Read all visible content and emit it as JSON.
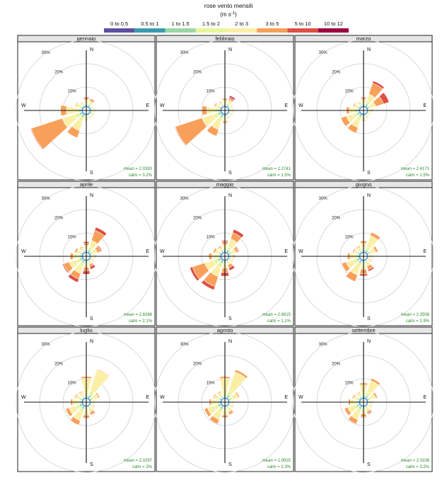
{
  "legend": {
    "title": "rose vento mensili",
    "unit_base": "(m s",
    "unit_exp": "-1",
    "unit_close": ")",
    "bins": [
      {
        "label": "0 to 0.5",
        "color": "#5E4FA2"
      },
      {
        "label": "0.5 to 1",
        "color": "#3A9BB0"
      },
      {
        "label": "1 to 1.5",
        "color": "#9CD6A4"
      },
      {
        "label": "1.5 to 2",
        "color": "#E8F59A"
      },
      {
        "label": "2 to 3",
        "color": "#FBEFA6"
      },
      {
        "label": "3 to 5",
        "color": "#F8A05A"
      },
      {
        "label": "5 to 10",
        "color": "#DE4F45"
      },
      {
        "label": "10 to 12",
        "color": "#9E0142"
      }
    ]
  },
  "axis_labels": {
    "north": "N",
    "south": "S",
    "east": "E",
    "west": "W"
  },
  "ring_labels": [
    "10%",
    "20%",
    "30%"
  ],
  "chart_data": {
    "type": "windrose",
    "directions_deg": [
      0,
      30,
      60,
      90,
      120,
      150,
      180,
      210,
      240,
      270,
      300,
      330
    ],
    "bins": [
      "0 to 0.5",
      "0.5 to 1",
      "1 to 1.5",
      "1.5 to 2",
      "2 to 3",
      "3 to 5",
      "5 to 10",
      "10 to 12"
    ],
    "rings_percent": [
      10,
      20,
      30
    ],
    "panels": [
      {
        "title": "gennaio",
        "mean": "mean = 2.0393",
        "calm": "calm = 3.2%",
        "freq": [
          [
            0.3,
            0.4,
            0.6,
            0.6,
            1.2,
            1.0,
            0.3,
            0
          ],
          [
            0.2,
            0.4,
            0.6,
            0.7,
            1.0,
            0.8,
            0.3,
            0
          ],
          [
            0.2,
            0.3,
            0.4,
            0.4,
            0.5,
            0.2,
            0,
            0
          ],
          [
            0.2,
            0.3,
            0.5,
            0.6,
            0.8,
            0.2,
            0,
            0
          ],
          [
            0.2,
            0.3,
            0.5,
            0.5,
            0.7,
            0.2,
            0,
            0
          ],
          [
            0.2,
            0.3,
            0.4,
            0.4,
            0.5,
            0.3,
            0.1,
            0
          ],
          [
            0.3,
            0.4,
            0.5,
            0.5,
            0.8,
            0.3,
            0.1,
            0
          ],
          [
            0.3,
            0.5,
            1.0,
            1.8,
            4.0,
            3.2,
            0,
            0
          ],
          [
            0.3,
            0.5,
            1.0,
            2.0,
            5.5,
            14.0,
            0.3,
            0
          ],
          [
            0.3,
            0.5,
            0.9,
            1.8,
            3.5,
            2.5,
            0,
            0
          ],
          [
            0.2,
            0.4,
            0.6,
            0.8,
            1.2,
            0.4,
            0,
            0
          ],
          [
            0.2,
            0.3,
            0.4,
            0.5,
            0.8,
            0.3,
            0,
            0
          ]
        ]
      },
      {
        "title": "febbraio",
        "mean": "mean = 2.2741",
        "calm": "calm = 1.5%",
        "freq": [
          [
            0.3,
            0.4,
            0.6,
            0.6,
            1.0,
            0.6,
            0.3,
            0
          ],
          [
            0.2,
            0.4,
            0.6,
            0.8,
            1.3,
            0.8,
            0.6,
            0.5
          ],
          [
            0.2,
            0.3,
            0.4,
            0.5,
            0.6,
            0.3,
            0.1,
            0
          ],
          [
            0.2,
            0.3,
            0.4,
            0.5,
            0.7,
            0.3,
            0,
            0
          ],
          [
            0.2,
            0.3,
            0.4,
            0.5,
            0.6,
            0.3,
            0.1,
            0
          ],
          [
            0.2,
            0.3,
            0.4,
            0.4,
            0.6,
            0.3,
            0.2,
            0
          ],
          [
            0.3,
            0.4,
            0.6,
            0.7,
            1.0,
            0.6,
            0.3,
            0
          ],
          [
            0.3,
            0.5,
            1.0,
            1.8,
            3.5,
            3.0,
            0.2,
            0
          ],
          [
            0.3,
            0.5,
            1.0,
            2.0,
            5.0,
            12.0,
            0.3,
            0
          ],
          [
            0.3,
            0.5,
            0.9,
            1.6,
            3.0,
            2.0,
            0,
            0
          ],
          [
            0.2,
            0.4,
            0.6,
            0.8,
            1.0,
            0.5,
            0,
            0
          ],
          [
            0.2,
            0.3,
            0.4,
            0.5,
            0.8,
            0.4,
            0,
            0
          ]
        ]
      },
      {
        "title": "marzo",
        "mean": "mean = 2.4171",
        "calm": "calm = 1.5%",
        "freq": [
          [
            0.3,
            0.4,
            0.6,
            0.7,
            1.2,
            0.8,
            0.3,
            0
          ],
          [
            0.3,
            0.5,
            0.8,
            1.2,
            3.0,
            5.0,
            1.0,
            0
          ],
          [
            0.2,
            0.4,
            0.6,
            0.8,
            2.0,
            3.5,
            2.5,
            0
          ],
          [
            0.2,
            0.3,
            0.4,
            0.5,
            0.8,
            0.3,
            0,
            0
          ],
          [
            0.2,
            0.3,
            0.4,
            0.5,
            0.6,
            0.2,
            0,
            0
          ],
          [
            0.2,
            0.3,
            0.4,
            0.4,
            0.6,
            0.3,
            0.1,
            0
          ],
          [
            0.3,
            0.4,
            0.5,
            0.6,
            0.8,
            0.4,
            0.1,
            0
          ],
          [
            0.3,
            0.5,
            0.9,
            1.5,
            3.0,
            2.5,
            0,
            0
          ],
          [
            0.3,
            0.5,
            0.9,
            1.5,
            3.0,
            2.5,
            0,
            0
          ],
          [
            0.3,
            0.4,
            0.8,
            1.2,
            2.0,
            1.2,
            0,
            0
          ],
          [
            0.2,
            0.4,
            0.6,
            0.7,
            1.0,
            0.5,
            0,
            0
          ],
          [
            0.2,
            0.3,
            0.4,
            0.5,
            0.8,
            0.3,
            0,
            0
          ]
        ]
      },
      {
        "title": "aprile",
        "mean": "mean = 2.8286",
        "calm": "calm = 2.1%",
        "freq": [
          [
            0.3,
            0.4,
            0.6,
            0.7,
            1.2,
            1.0,
            0.6,
            0
          ],
          [
            0.3,
            0.5,
            0.8,
            1.2,
            2.8,
            4.5,
            1.5,
            0
          ],
          [
            0.2,
            0.4,
            0.6,
            0.8,
            1.5,
            1.5,
            0.5,
            0
          ],
          [
            0.2,
            0.3,
            0.4,
            0.5,
            0.8,
            0.4,
            0,
            0
          ],
          [
            0.2,
            0.3,
            0.4,
            0.5,
            0.6,
            0.3,
            0,
            0
          ],
          [
            0.2,
            0.3,
            0.4,
            0.5,
            0.8,
            1.0,
            1.2,
            0
          ],
          [
            0.3,
            0.4,
            0.6,
            0.7,
            1.2,
            1.5,
            1.5,
            0
          ],
          [
            0.3,
            0.5,
            0.9,
            1.5,
            3.0,
            2.5,
            1.5,
            0
          ],
          [
            0.3,
            0.5,
            0.9,
            1.5,
            3.0,
            2.5,
            0.5,
            0
          ],
          [
            0.3,
            0.4,
            0.7,
            1.0,
            1.8,
            1.2,
            0,
            0
          ],
          [
            0.2,
            0.4,
            0.6,
            0.7,
            1.2,
            0.8,
            0,
            0
          ],
          [
            0.2,
            0.3,
            0.5,
            0.5,
            1.0,
            0.5,
            0,
            0
          ]
        ]
      },
      {
        "title": "maggio",
        "mean": "mean = 2.8615",
        "calm": "calm = 1.1%",
        "freq": [
          [
            0.3,
            0.4,
            0.6,
            0.8,
            1.5,
            1.2,
            0.5,
            0
          ],
          [
            0.3,
            0.5,
            0.8,
            1.2,
            3.5,
            2.8,
            1.5,
            0
          ],
          [
            0.2,
            0.4,
            0.6,
            0.8,
            1.5,
            1.0,
            0.4,
            0
          ],
          [
            0.2,
            0.3,
            0.4,
            0.5,
            0.8,
            0.5,
            0,
            0
          ],
          [
            0.2,
            0.3,
            0.4,
            0.5,
            0.7,
            0.3,
            0,
            0
          ],
          [
            0.2,
            0.3,
            0.4,
            0.5,
            1.0,
            1.3,
            1.2,
            0
          ],
          [
            0.3,
            0.4,
            0.6,
            0.8,
            1.5,
            1.8,
            1.6,
            0
          ],
          [
            0.3,
            0.5,
            1.0,
            1.8,
            4.0,
            4.5,
            1.5,
            0
          ],
          [
            0.3,
            0.5,
            1.0,
            1.8,
            4.0,
            5.5,
            1.2,
            0
          ],
          [
            0.3,
            0.4,
            0.7,
            1.0,
            1.8,
            1.2,
            0,
            0
          ],
          [
            0.2,
            0.4,
            0.6,
            0.7,
            1.2,
            0.8,
            0,
            0
          ],
          [
            0.2,
            0.3,
            0.5,
            0.6,
            1.0,
            0.6,
            0,
            0
          ]
        ]
      },
      {
        "title": "giugno",
        "mean": "mean = 2.3508",
        "calm": "calm = 2.9%",
        "freq": [
          [
            0.3,
            0.4,
            0.6,
            0.8,
            2.0,
            1.0,
            0,
            0
          ],
          [
            0.3,
            0.5,
            0.8,
            1.2,
            5.0,
            1.5,
            0,
            0
          ],
          [
            0.2,
            0.4,
            0.6,
            0.8,
            2.0,
            1.0,
            0,
            0
          ],
          [
            0.2,
            0.3,
            0.4,
            0.5,
            0.8,
            0.3,
            0,
            0
          ],
          [
            0.2,
            0.3,
            0.4,
            0.5,
            0.8,
            0.3,
            0,
            0
          ],
          [
            0.2,
            0.3,
            0.4,
            0.6,
            1.5,
            1.5,
            0.8,
            0
          ],
          [
            0.3,
            0.4,
            0.6,
            0.8,
            2.0,
            2.0,
            0.8,
            0
          ],
          [
            0.3,
            0.5,
            1.0,
            1.6,
            3.5,
            3.0,
            0,
            0
          ],
          [
            0.3,
            0.5,
            1.0,
            1.5,
            3.0,
            2.0,
            0,
            0
          ],
          [
            0.3,
            0.4,
            0.7,
            1.0,
            2.0,
            1.0,
            0,
            0
          ],
          [
            0.2,
            0.4,
            0.6,
            0.7,
            1.2,
            0.5,
            0,
            0
          ],
          [
            0.2,
            0.3,
            0.5,
            0.6,
            1.2,
            0.5,
            0,
            0
          ]
        ]
      },
      {
        "title": "luglio",
        "mean": "mean = 2.0297",
        "calm": "calm = 3%",
        "freq": [
          [
            0.3,
            0.4,
            0.8,
            1.2,
            6.0,
            0.8,
            0,
            0
          ],
          [
            0.3,
            0.5,
            1.0,
            1.8,
            9.5,
            0.3,
            0,
            0
          ],
          [
            0.2,
            0.4,
            0.6,
            0.8,
            2.0,
            0.6,
            0,
            0
          ],
          [
            0.2,
            0.3,
            0.4,
            0.5,
            0.8,
            0.2,
            0,
            0
          ],
          [
            0.2,
            0.3,
            0.4,
            0.5,
            0.8,
            0.3,
            0,
            0
          ],
          [
            0.2,
            0.3,
            0.4,
            0.6,
            1.5,
            1.2,
            0.3,
            0
          ],
          [
            0.3,
            0.4,
            0.6,
            0.8,
            2.0,
            1.2,
            0.2,
            0
          ],
          [
            0.3,
            0.5,
            1.0,
            1.5,
            3.5,
            2.0,
            0,
            0
          ],
          [
            0.3,
            0.5,
            1.0,
            1.5,
            3.0,
            1.5,
            0,
            0
          ],
          [
            0.3,
            0.4,
            0.7,
            1.0,
            2.0,
            0.8,
            0,
            0
          ],
          [
            0.2,
            0.4,
            0.6,
            0.7,
            1.5,
            0.5,
            0,
            0
          ],
          [
            0.2,
            0.3,
            0.5,
            0.6,
            1.5,
            0.4,
            0,
            0
          ]
        ]
      },
      {
        "title": "agosto",
        "mean": "mean = 1.9925",
        "calm": "calm = 2.3%",
        "freq": [
          [
            0.3,
            0.4,
            0.8,
            1.2,
            6.0,
            0.8,
            0,
            0
          ],
          [
            0.3,
            0.5,
            1.0,
            1.8,
            8.5,
            1.0,
            0,
            0
          ],
          [
            0.2,
            0.4,
            0.6,
            0.8,
            2.5,
            0.6,
            0,
            0
          ],
          [
            0.2,
            0.3,
            0.4,
            0.5,
            0.8,
            0.2,
            0,
            0
          ],
          [
            0.2,
            0.3,
            0.4,
            0.5,
            0.8,
            0.3,
            0,
            0
          ],
          [
            0.2,
            0.3,
            0.4,
            0.6,
            1.5,
            1.0,
            0.3,
            0
          ],
          [
            0.3,
            0.4,
            0.6,
            0.8,
            2.0,
            1.0,
            0.2,
            0
          ],
          [
            0.3,
            0.5,
            1.0,
            1.5,
            3.0,
            2.0,
            0,
            0
          ],
          [
            0.3,
            0.5,
            1.0,
            1.5,
            3.0,
            1.5,
            0,
            0
          ],
          [
            0.3,
            0.4,
            0.7,
            1.0,
            2.0,
            0.8,
            0,
            0
          ],
          [
            0.2,
            0.4,
            0.6,
            0.7,
            1.5,
            0.5,
            0,
            0
          ],
          [
            0.2,
            0.3,
            0.5,
            0.6,
            1.5,
            0.4,
            0,
            0
          ]
        ]
      },
      {
        "title": "settembre",
        "mean": "mean = 2.0238",
        "calm": "calm = 3.2%",
        "freq": [
          [
            0.3,
            0.4,
            0.7,
            1.0,
            3.5,
            0.8,
            0,
            0
          ],
          [
            0.3,
            0.5,
            0.9,
            1.5,
            5.0,
            1.0,
            0,
            0
          ],
          [
            0.2,
            0.4,
            0.6,
            0.8,
            2.0,
            0.8,
            0,
            0
          ],
          [
            0.2,
            0.3,
            0.4,
            0.5,
            0.8,
            0.3,
            0,
            0
          ],
          [
            0.2,
            0.3,
            0.4,
            0.5,
            0.8,
            0.3,
            0,
            0
          ],
          [
            0.2,
            0.3,
            0.4,
            0.6,
            1.2,
            1.0,
            0.4,
            0
          ],
          [
            0.3,
            0.4,
            0.6,
            0.8,
            1.5,
            1.2,
            0.3,
            0
          ],
          [
            0.3,
            0.5,
            1.0,
            1.5,
            3.0,
            2.0,
            0,
            0
          ],
          [
            0.3,
            0.5,
            0.9,
            1.4,
            2.5,
            1.5,
            0,
            0
          ],
          [
            0.3,
            0.4,
            0.7,
            1.0,
            1.8,
            0.8,
            0,
            0
          ],
          [
            0.2,
            0.4,
            0.6,
            0.7,
            1.2,
            0.5,
            0,
            0
          ],
          [
            0.2,
            0.3,
            0.5,
            0.6,
            1.2,
            0.4,
            0,
            0
          ]
        ]
      }
    ]
  }
}
